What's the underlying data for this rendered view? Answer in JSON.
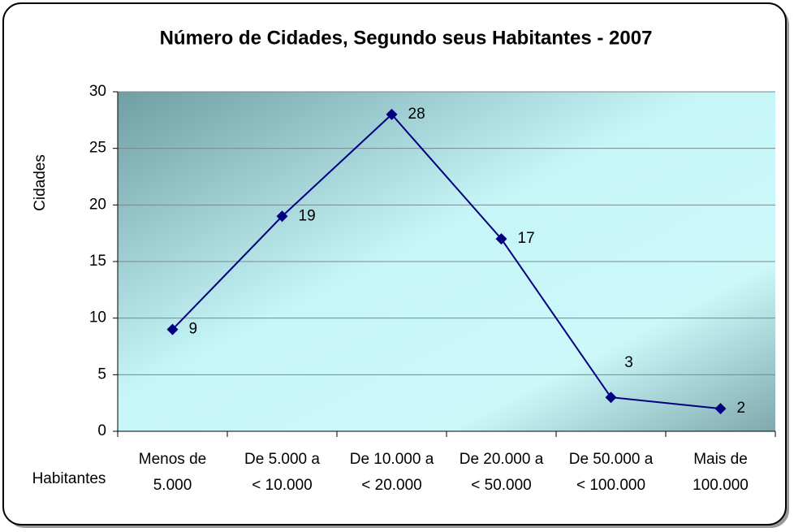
{
  "chart_data": {
    "type": "line",
    "title": "Número de Cidades, Segundo seus Habitantes - 2007",
    "y_label": "Cidades",
    "x_label": "Habitantes",
    "categories": [
      "Menos de\n5.000",
      "De 5.000 a\n< 10.000",
      "De 10.000 a\n< 20.000",
      "De 20.000 a\n< 50.000",
      "De 50.000 a\n< 100.000",
      "Mais de\n100.000"
    ],
    "values": [
      9,
      19,
      28,
      17,
      3,
      2
    ],
    "color": "#000080",
    "ylim": [
      0,
      30
    ],
    "yticks": [
      0,
      5,
      10,
      15,
      20,
      25,
      30
    ],
    "grid": true
  }
}
